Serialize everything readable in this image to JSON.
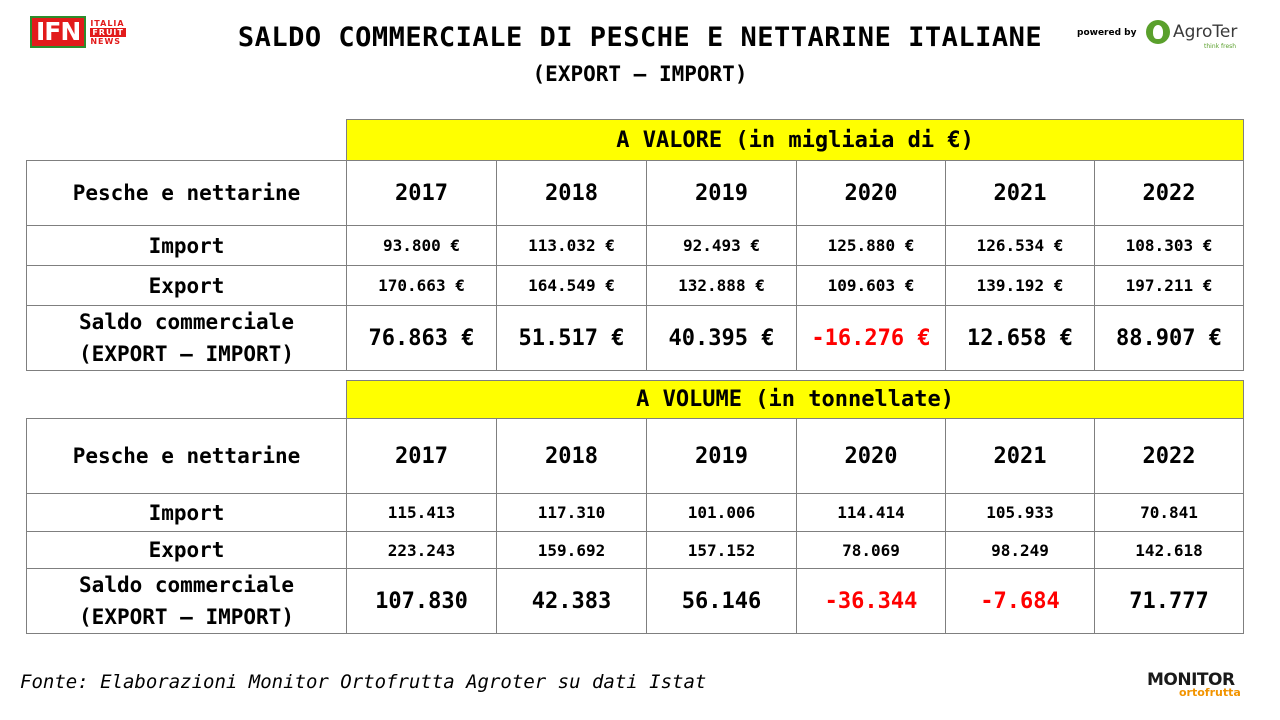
{
  "header": {
    "title": "SALDO COMMERCIALE DI PESCHE E NETTARINE ITALIANE",
    "subtitle": "(EXPORT – IMPORT)",
    "ifn_logo": {
      "letters": "IFN",
      "line1": "ITALIA",
      "line2": "FRUIT",
      "line3": "NEWS"
    },
    "powered_by": "powered by",
    "agroter_logo": {
      "name": "AgroTer",
      "tagline": "think fresh"
    }
  },
  "colors": {
    "header_fill": "#ffff00",
    "negative": "#ff0000",
    "border": "#7f7f7f"
  },
  "tables": [
    {
      "section_title": "A VALORE (in migliaia di €)",
      "row_header": "Pesche e nettarine",
      "years": [
        "2017",
        "2018",
        "2019",
        "2020",
        "2021",
        "2022"
      ],
      "import_label": "Import",
      "import": [
        "93.800 €",
        "113.032 €",
        "92.493 €",
        "125.880 €",
        "126.534 €",
        "108.303 €"
      ],
      "export_label": "Export",
      "export": [
        "170.663 €",
        "164.549 €",
        "132.888 €",
        "109.603 €",
        "139.192 €",
        "197.211 €"
      ],
      "saldo_label_1": "Saldo commerciale",
      "saldo_label_2": "(EXPORT – IMPORT)",
      "saldo": [
        "76.863 €",
        "51.517 €",
        "40.395 €",
        "-16.276 €",
        "12.658 €",
        "88.907 €"
      ]
    },
    {
      "section_title": "A VOLUME (in tonnellate)",
      "row_header": "Pesche e nettarine",
      "years": [
        "2017",
        "2018",
        "2019",
        "2020",
        "2021",
        "2022"
      ],
      "import_label": "Import",
      "import": [
        "115.413",
        "117.310",
        "101.006",
        "114.414",
        "105.933",
        "70.841"
      ],
      "export_label": "Export",
      "export": [
        "223.243",
        "159.692",
        "157.152",
        "78.069",
        "98.249",
        "142.618"
      ],
      "saldo_label_1": "Saldo commerciale",
      "saldo_label_2": "(EXPORT – IMPORT)",
      "saldo": [
        "107.830",
        "42.383",
        "56.146",
        "-36.344",
        "-7.684",
        "71.777"
      ]
    }
  ],
  "footer": {
    "source": "Fonte: Elaborazioni Monitor Ortofrutta Agroter su dati Istat",
    "monitor_logo": {
      "line1": "MONITOR",
      "line2": "ortofrutta"
    }
  }
}
